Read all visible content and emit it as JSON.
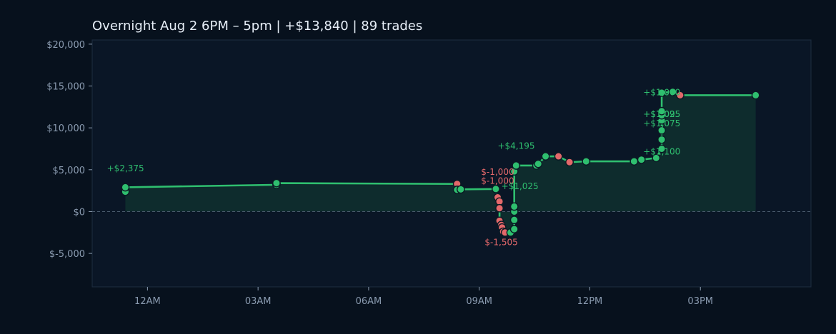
{
  "colors": {
    "background": "#07111d",
    "plot_bg": "#0a1626",
    "plot_border": "#1e2d40",
    "line": "#2fbf6f",
    "area": "#0e2f2f",
    "win_marker": "#2fbf6f",
    "loss_marker": "#e3686a",
    "zero_line": "#4a5a6c",
    "text": "#e6eef7",
    "tick_text": "#8a9bb0"
  },
  "chart_data": {
    "type": "line",
    "title": "Overnight  Aug 2 6PM – 5pm  |  +$13,840  |  89 trades",
    "xlabel": "",
    "ylabel": "",
    "x_unit": "hours after midnight Aug 2–3",
    "xlim": [
      -1.5,
      18.0
    ],
    "ylim": [
      -9000,
      20500
    ],
    "y_ticks": [
      -5000,
      0,
      5000,
      10000,
      15000,
      20000
    ],
    "y_tick_labels": [
      "$-5,000",
      "$0",
      "$5,000",
      "$10,000",
      "$15,000",
      "$20,000"
    ],
    "x_ticks": [
      0,
      3,
      6,
      9,
      12,
      15
    ],
    "x_tick_labels": [
      "12AM",
      "03AM",
      "06AM",
      "09AM",
      "12PM",
      "03PM"
    ],
    "zero_line": true,
    "grid": false,
    "points": [
      {
        "x": -0.6,
        "y": 2375,
        "win": true
      },
      {
        "x": -0.6,
        "y": 2900,
        "win": true
      },
      {
        "x": 3.5,
        "y": 3200,
        "win": true
      },
      {
        "x": 3.5,
        "y": 3400,
        "win": true
      },
      {
        "x": 8.4,
        "y": 3300,
        "win": false
      },
      {
        "x": 8.4,
        "y": 2600,
        "win": true
      },
      {
        "x": 8.5,
        "y": 2650,
        "win": true
      },
      {
        "x": 9.45,
        "y": 2700,
        "win": true
      },
      {
        "x": 9.5,
        "y": 1700,
        "win": false
      },
      {
        "x": 9.55,
        "y": 1200,
        "win": false
      },
      {
        "x": 9.55,
        "y": 400,
        "win": false
      },
      {
        "x": 9.55,
        "y": -1100,
        "win": false
      },
      {
        "x": 9.6,
        "y": -1600,
        "win": false
      },
      {
        "x": 9.62,
        "y": -1900,
        "win": false
      },
      {
        "x": 9.65,
        "y": -2400,
        "win": false
      },
      {
        "x": 9.7,
        "y": -2500,
        "win": false
      },
      {
        "x": 9.85,
        "y": -2500,
        "win": true
      },
      {
        "x": 9.95,
        "y": -2100,
        "win": true
      },
      {
        "x": 9.95,
        "y": -1000,
        "win": true
      },
      {
        "x": 9.95,
        "y": 0,
        "win": true
      },
      {
        "x": 9.95,
        "y": 600,
        "win": true
      },
      {
        "x": 9.95,
        "y": 4800,
        "win": true
      },
      {
        "x": 10.0,
        "y": 5500,
        "win": true
      },
      {
        "x": 10.55,
        "y": 5500,
        "win": true
      },
      {
        "x": 10.6,
        "y": 5700,
        "win": true
      },
      {
        "x": 10.8,
        "y": 6600,
        "win": true
      },
      {
        "x": 11.15,
        "y": 6600,
        "win": false
      },
      {
        "x": 11.45,
        "y": 5900,
        "win": false
      },
      {
        "x": 11.9,
        "y": 6000,
        "win": true
      },
      {
        "x": 13.2,
        "y": 6000,
        "win": true
      },
      {
        "x": 13.4,
        "y": 6200,
        "win": true
      },
      {
        "x": 13.8,
        "y": 6400,
        "win": true
      },
      {
        "x": 13.95,
        "y": 7500,
        "win": true
      },
      {
        "x": 13.95,
        "y": 8600,
        "win": true
      },
      {
        "x": 13.95,
        "y": 9700,
        "win": true
      },
      {
        "x": 13.95,
        "y": 10900,
        "win": true
      },
      {
        "x": 13.95,
        "y": 11500,
        "win": true
      },
      {
        "x": 13.95,
        "y": 12000,
        "win": true
      },
      {
        "x": 13.95,
        "y": 14200,
        "win": true
      },
      {
        "x": 14.25,
        "y": 14300,
        "win": true
      },
      {
        "x": 14.45,
        "y": 13900,
        "win": false
      },
      {
        "x": 16.5,
        "y": 13900,
        "win": true
      }
    ],
    "annotations": [
      {
        "text": "+$2,375",
        "x": -1.1,
        "y": 4800,
        "type": "win"
      },
      {
        "text": "$-1,000",
        "x": 9.05,
        "y": 4400,
        "type": "loss"
      },
      {
        "text": "$-1,000",
        "x": 9.05,
        "y": 3300,
        "type": "loss"
      },
      {
        "text": "+$1,025",
        "x": 9.6,
        "y": 2700,
        "type": "win"
      },
      {
        "text": "$-1,505",
        "x": 9.15,
        "y": -4000,
        "type": "loss"
      },
      {
        "text": "+$4,195",
        "x": 9.5,
        "y": 7500,
        "type": "win"
      },
      {
        "text": "+$1,100",
        "x": 13.45,
        "y": 6800,
        "type": "win"
      },
      {
        "text": "+$1,075",
        "x": 13.45,
        "y": 10200,
        "type": "win"
      },
      {
        "text": "+$1,095",
        "x": 13.45,
        "y": 11300,
        "type": "win"
      },
      {
        "text": "+$1,025",
        "x": 13.45,
        "y": 11300,
        "type": "win"
      },
      {
        "text": "+$1,000",
        "x": 13.45,
        "y": 13900,
        "type": "win"
      }
    ]
  }
}
